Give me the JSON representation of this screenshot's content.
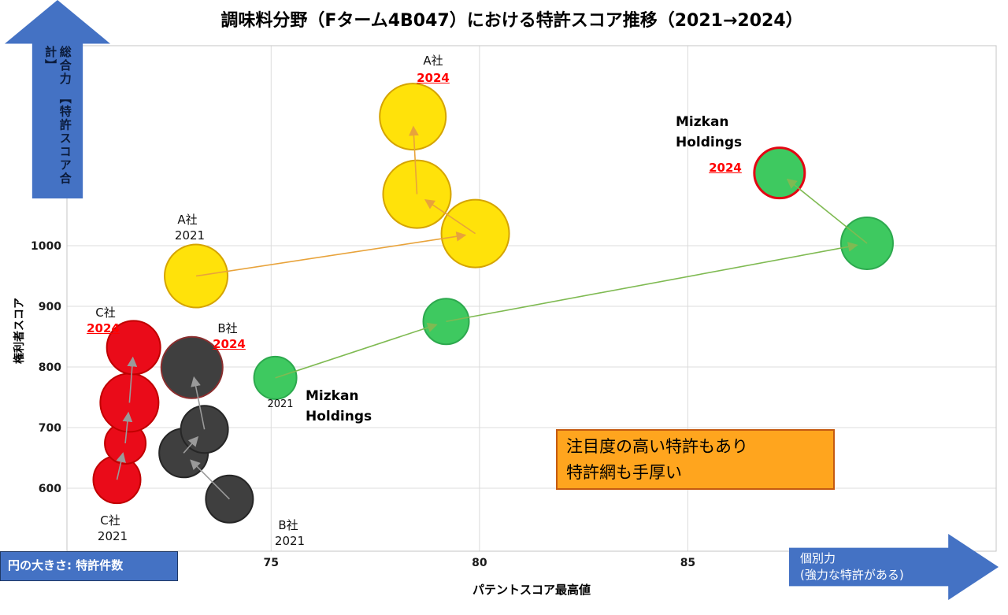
{
  "title": "調味料分野（Fターム4B047）における特許スコア推移（2021→2024）",
  "total_power_arrow": {
    "line1": "総合力",
    "line2": "【特許スコア合計】"
  },
  "individual_power_arrow": {
    "line1": "個別力",
    "line2": "(強力な特許がある)"
  },
  "size_legend": "円の大きさ: 特許件数",
  "callout": {
    "line1": "注目度の高い特許もあり",
    "line2": "特許網も手厚い"
  },
  "colors": {
    "arrow_blue": "#4472C4",
    "callout_fill": "#FFA51E",
    "callout_border": "#C55A11",
    "highlight_red": "#FF0000",
    "grid_gray": "#DCDCDC"
  },
  "chart_data": {
    "type": "scatter",
    "subtype": "bubble",
    "title": "調味料分野（Fターム4B047）における特許スコア推移（2021→2024）",
    "xlabel": "パテントスコア最高値",
    "ylabel": "権利者スコア",
    "xlim": [
      70.1,
      92.4
    ],
    "ylim": [
      496,
      1330
    ],
    "xticks": [
      75,
      80,
      85
    ],
    "yticks": [
      600,
      700,
      800,
      900,
      1000
    ],
    "grid": true,
    "bubble_size_meaning": "特許件数",
    "series": [
      {
        "name": "A社",
        "fill": "#FFE20A",
        "stroke": "#D5A400",
        "line": "#E8A33B",
        "points": [
          {
            "x": 73.2,
            "y": 950,
            "r": 40,
            "year": "2021"
          },
          {
            "x": 79.9,
            "y": 1020,
            "r": 43
          },
          {
            "x": 78.5,
            "y": 1085,
            "r": 43
          },
          {
            "x": 78.4,
            "y": 1213,
            "r": 42,
            "year": "2024"
          }
        ]
      },
      {
        "name": "Mizkan Holdings",
        "fill": "#3EC960",
        "stroke": "#2DA94E",
        "line": "#7FBA52",
        "points": [
          {
            "x": 75.1,
            "y": 782,
            "r": 27,
            "year": "2021"
          },
          {
            "x": 79.2,
            "y": 875,
            "r": 29
          },
          {
            "x": 89.3,
            "y": 1004,
            "r": 33
          },
          {
            "x": 87.2,
            "y": 1120,
            "r": 32,
            "year": "2024",
            "stroke": "#E30613",
            "strokeWidth": 3
          }
        ]
      },
      {
        "name": "C社",
        "fill": "#EA0B19",
        "stroke": "#C00000",
        "line": "#9A9A9A",
        "points": [
          {
            "x": 71.3,
            "y": 614,
            "r": 30,
            "year": "2021"
          },
          {
            "x": 71.5,
            "y": 674,
            "r": 26
          },
          {
            "x": 71.6,
            "y": 741,
            "r": 37
          },
          {
            "x": 71.7,
            "y": 832,
            "r": 34,
            "year": "2024"
          }
        ]
      },
      {
        "name": "B社",
        "fill": "#3F3F3F",
        "stroke": "#262626",
        "line": "#9A9A9A",
        "points": [
          {
            "x": 74.0,
            "y": 582,
            "r": 30,
            "year": "2021"
          },
          {
            "x": 72.9,
            "y": 658,
            "r": 31
          },
          {
            "x": 73.4,
            "y": 697,
            "r": 30
          },
          {
            "x": 73.1,
            "y": 799,
            "r": 39,
            "year": "2024",
            "stroke": "#8B2E2E",
            "strokeWidth": 2
          }
        ]
      }
    ],
    "annotations": [
      {
        "text": "A社",
        "x": 550,
        "y": 66,
        "cls": "co"
      },
      {
        "text": "2024",
        "x": 550,
        "y": 90,
        "cls": "yr24"
      },
      {
        "text": "A社",
        "x": 238,
        "y": 268,
        "cls": "co"
      },
      {
        "text": "2021",
        "x": 241,
        "y": 290,
        "cls": "co"
      },
      {
        "text": "C社",
        "x": 134,
        "y": 386,
        "cls": "co"
      },
      {
        "text": "2024",
        "x": 131,
        "y": 408,
        "cls": "yr24"
      },
      {
        "text": "B社",
        "x": 289,
        "y": 406,
        "cls": "co"
      },
      {
        "text": "2024",
        "x": 291,
        "y": 428,
        "cls": "yr24"
      },
      {
        "text": "C社",
        "x": 140,
        "y": 650,
        "cls": "co"
      },
      {
        "text": "2021",
        "x": 143,
        "y": 672,
        "cls": "co"
      },
      {
        "text": "B社",
        "x": 366,
        "y": 656,
        "cls": "co"
      },
      {
        "text": "2021",
        "x": 368,
        "y": 678,
        "cls": "co"
      },
      {
        "text": "2021",
        "x": 356,
        "y": 506,
        "cls": "yr-small"
      },
      {
        "text": "Mizkan",
        "x": 388,
        "y": 493,
        "cls": "brand"
      },
      {
        "text": "Holdings",
        "x": 388,
        "y": 519,
        "cls": "brand"
      },
      {
        "text": "Mizkan",
        "x": 858,
        "y": 145,
        "cls": "brand"
      },
      {
        "text": "Holdings",
        "x": 858,
        "y": 171,
        "cls": "brand"
      },
      {
        "text": "2024",
        "x": 921,
        "y": 204,
        "cls": "yr24"
      }
    ]
  }
}
